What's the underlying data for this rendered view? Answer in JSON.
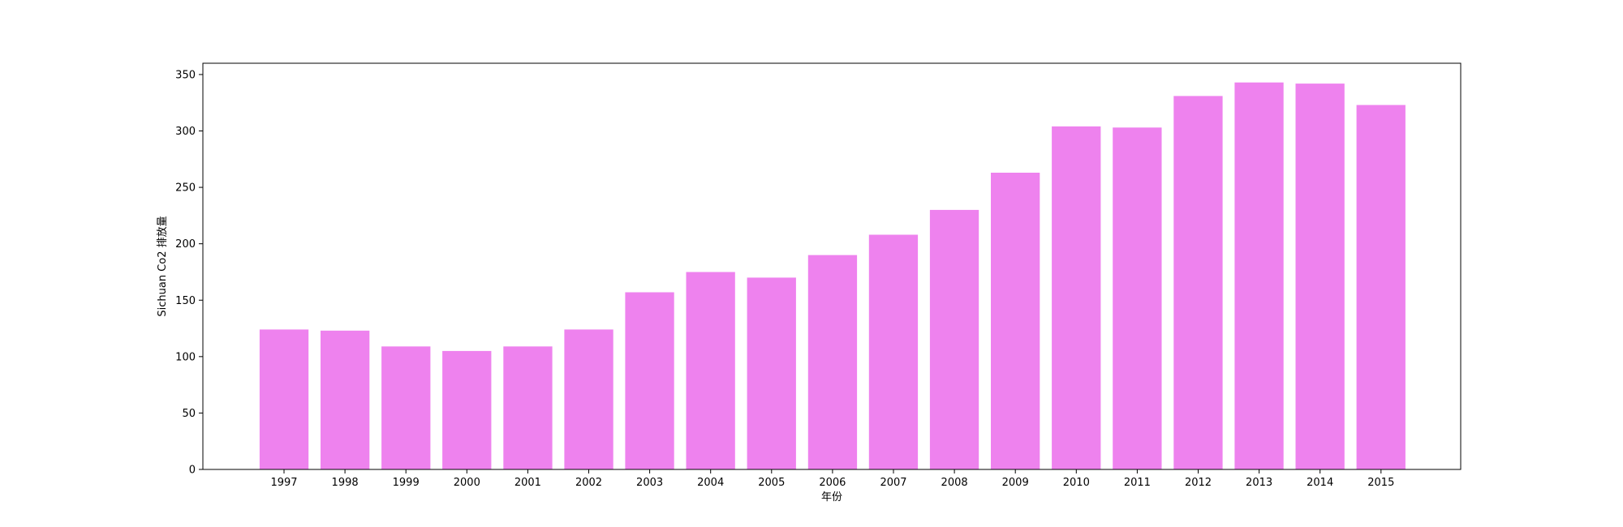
{
  "chart_data": {
    "type": "bar",
    "title": "",
    "xlabel": "年份",
    "ylabel": "Sichuan Co2 排放量",
    "categories": [
      "1997",
      "1998",
      "1999",
      "2000",
      "2001",
      "2002",
      "2003",
      "2004",
      "2005",
      "2006",
      "2007",
      "2008",
      "2009",
      "2010",
      "2011",
      "2012",
      "2013",
      "2014",
      "2015"
    ],
    "values": [
      124,
      123,
      109,
      105,
      109,
      124,
      157,
      175,
      170,
      190,
      208,
      230,
      263,
      304,
      303,
      331,
      343,
      342,
      323
    ],
    "ylim": [
      0,
      360
    ],
    "yticks": [
      0,
      50,
      100,
      150,
      200,
      250,
      300,
      350
    ],
    "bar_color": "#ee82ee",
    "grid": false,
    "legend": "none"
  }
}
